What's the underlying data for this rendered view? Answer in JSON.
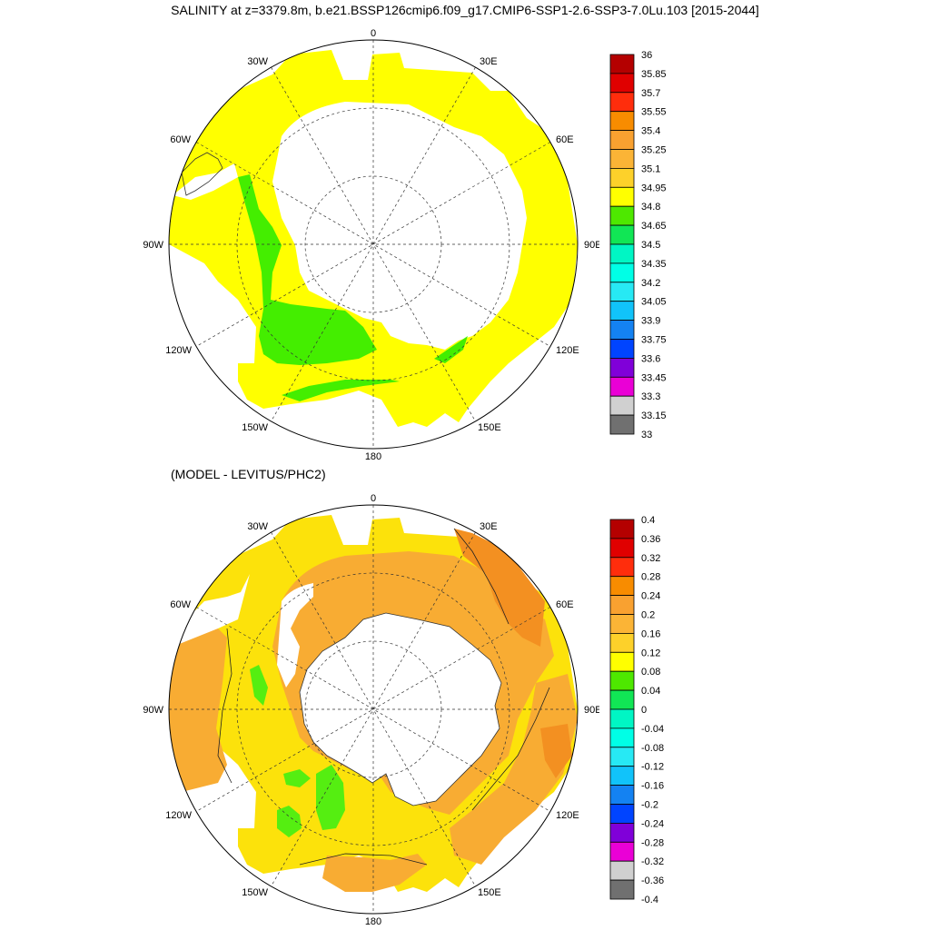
{
  "title": "SALINITY at z=3379.8m, b.e21.BSSP126cmip6.f09_g17.CMIP6-SSP1-2.6-SSP3-7.0Lu.103 [2015-2044]",
  "subtitle": "(MODEL - LEVITUS/PHC2)",
  "lon_labels": [
    "0",
    "30E",
    "60E",
    "90E",
    "120E",
    "150E",
    "180",
    "150W",
    "120W",
    "90W",
    "60W",
    "30W"
  ],
  "colors": {
    "ocean_top": "#ffff00",
    "anomaly_green_top": "#44ee00",
    "ocean_bottom": "#fce20b",
    "anomaly_orange": "#f8ac33",
    "anomaly_green": "#55ee11",
    "anomaly_orange_dark": "#f39021"
  },
  "colorbar_top": {
    "labels": [
      "36",
      "35.85",
      "35.7",
      "35.55",
      "35.4",
      "35.25",
      "35.1",
      "34.95",
      "34.8",
      "34.65",
      "34.5",
      "34.35",
      "34.2",
      "34.05",
      "33.9",
      "33.75",
      "33.6",
      "33.45",
      "33.3",
      "33.15",
      "33"
    ],
    "colors": [
      "#b40000",
      "#e00000",
      "#ff2d0c",
      "#f88c00",
      "#f9a130",
      "#fbb436",
      "#fdd12a",
      "#ffff00",
      "#4ee800",
      "#11e655",
      "#00f6c4",
      "#00ffe6",
      "#27e9f4",
      "#11c3fa",
      "#1482f2",
      "#0044ff",
      "#8000d9",
      "#ea00d6",
      "#d0d0d0",
      "#707070"
    ]
  },
  "colorbar_bottom": {
    "labels": [
      "0.4",
      "0.36",
      "0.32",
      "0.28",
      "0.24",
      "0.2",
      "0.16",
      "0.12",
      "0.08",
      "0.04",
      "0",
      "-0.04",
      "-0.08",
      "-0.12",
      "-0.16",
      "-0.2",
      "-0.24",
      "-0.28",
      "-0.32",
      "-0.36",
      "-0.4"
    ],
    "colors": [
      "#b40000",
      "#e00000",
      "#ff2d0c",
      "#f88c00",
      "#f9a130",
      "#fbb436",
      "#fdd12a",
      "#ffff00",
      "#4ee800",
      "#11e655",
      "#00f6c4",
      "#00ffe6",
      "#27e9f4",
      "#11c3fa",
      "#1482f2",
      "#0044ff",
      "#8000d9",
      "#ea00d6",
      "#d0d0d0",
      "#707070"
    ]
  }
}
